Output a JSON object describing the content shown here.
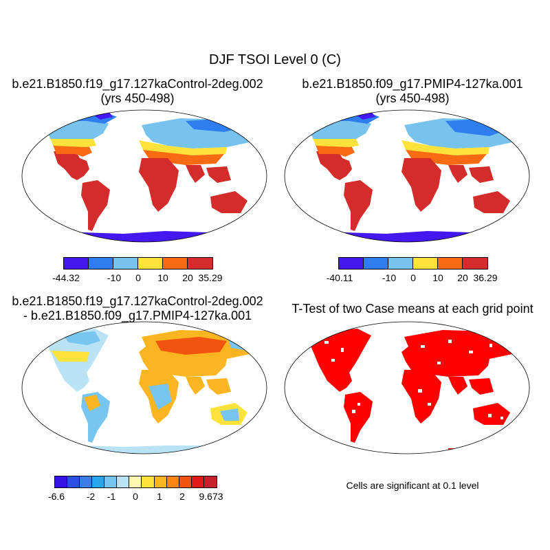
{
  "figure": {
    "title": "DJF TSOI Level 0 (C)",
    "note": "Cells are significant at 0.1 level"
  },
  "panels": [
    {
      "title_line1": "b.e21.B1850.f19_g17.127kaControl-2deg.002",
      "title_line2": "(yrs 450-498)",
      "colorbar": {
        "colors": [
          "#4219f1",
          "#2f7ef0",
          "#78c3ee",
          "#fde23c",
          "#f96b12",
          "#d42b2b"
        ],
        "tick_labels": [
          "-44.32",
          "-10",
          "0",
          "10",
          "20",
          "35.29"
        ]
      }
    },
    {
      "title_line1": "b.e21.B1850.f09_g17.PMIP4-127ka.001",
      "title_line2": "(yrs 450-498)",
      "colorbar": {
        "colors": [
          "#4219f1",
          "#2f7ef0",
          "#78c3ee",
          "#fde23c",
          "#f96b12",
          "#d42b2b"
        ],
        "tick_labels": [
          "-40.11",
          "-10",
          "0",
          "10",
          "20",
          "36.29"
        ]
      }
    },
    {
      "title_line1": "b.e21.B1850.f19_g17.127kaControl-2deg.002",
      "title_line2": "- b.e21.B1850.f09_g17.PMIP4-127ka.001",
      "colorbar": {
        "colors": [
          "#3412e8",
          "#2a4fe3",
          "#3a7de6",
          "#25a6ee",
          "#78c6f0",
          "#b9e3f4",
          "#fdf7b0",
          "#fde23c",
          "#fbb521",
          "#f98512",
          "#f2540f",
          "#e31a1a",
          "#c6222e"
        ],
        "tick_labels": [
          "-6.6",
          "-2",
          "-1",
          "0",
          "1",
          "2",
          "9.673"
        ]
      }
    },
    {
      "title": "T-Test of two Case means at each grid point",
      "significance_color": "#ff0000"
    }
  ]
}
